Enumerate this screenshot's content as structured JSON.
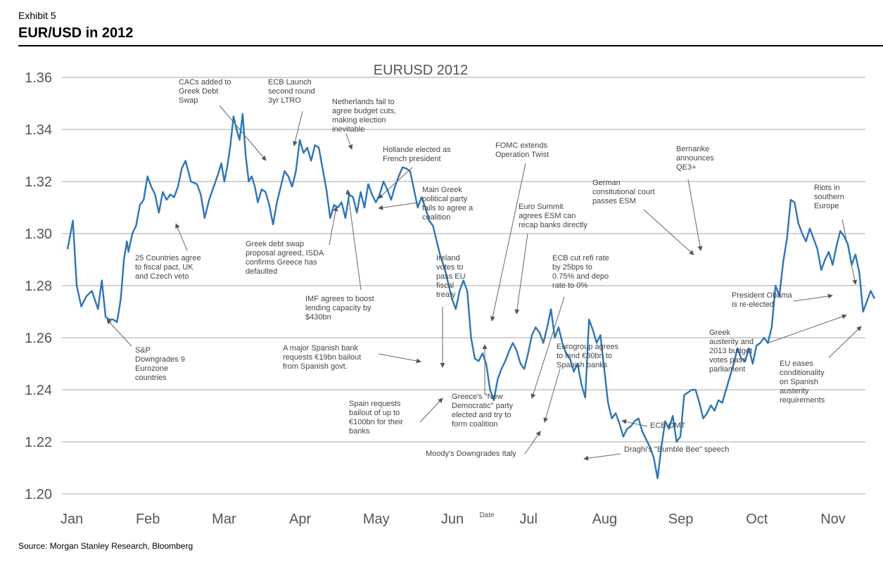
{
  "header": {
    "exhibit": "Exhibit 5",
    "title": "EUR/USD in 2012",
    "source": "Source: Morgan Stanley Research, Bloomberg"
  },
  "chart_data": {
    "type": "line",
    "title": "EURUSD 2012",
    "xlabel": "Date",
    "ylabel": "",
    "ylim": [
      1.2,
      1.36
    ],
    "yticks": [
      "1.20",
      "1.22",
      "1.24",
      "1.26",
      "1.28",
      "1.30",
      "1.32",
      "1.34",
      "1.36"
    ],
    "xticks": [
      "Jan",
      "Feb",
      "Mar",
      "Apr",
      "May",
      "Jun",
      "Jul",
      "Aug",
      "Sep",
      "Oct",
      "Nov"
    ],
    "grid": true,
    "color": "#2e75b6",
    "series": [
      {
        "name": "EURUSD",
        "x": [
          0,
          0.07,
          0.12,
          0.18,
          0.25,
          0.32,
          0.4,
          0.45,
          0.5,
          0.55,
          0.6,
          0.65,
          0.7,
          0.74,
          0.78,
          0.8,
          0.85,
          0.9,
          0.95,
          1.0,
          1.05,
          1.1,
          1.15,
          1.2,
          1.25,
          1.3,
          1.35,
          1.4,
          1.45,
          1.5,
          1.55,
          1.62,
          1.7,
          1.75,
          1.8,
          1.86,
          1.92,
          1.98,
          2.02,
          2.06,
          2.1,
          2.14,
          2.18,
          2.22,
          2.26,
          2.3,
          2.34,
          2.38,
          2.42,
          2.46,
          2.5,
          2.55,
          2.6,
          2.65,
          2.7,
          2.75,
          2.8,
          2.85,
          2.9,
          2.95,
          3.0,
          3.05,
          3.1,
          3.15,
          3.2,
          3.25,
          3.3,
          3.35,
          3.4,
          3.45,
          3.5,
          3.55,
          3.6,
          3.65,
          3.7,
          3.75,
          3.8,
          3.85,
          3.9,
          3.95,
          4.0,
          4.05,
          4.1,
          4.15,
          4.2,
          4.25,
          4.3,
          4.35,
          4.4,
          4.45,
          4.5,
          4.55,
          4.6,
          4.65,
          4.7,
          4.75,
          4.8,
          4.85,
          4.9,
          4.95,
          5.0,
          5.05,
          5.1,
          5.15,
          5.2,
          5.25,
          5.3,
          5.35,
          5.4,
          5.45,
          5.5,
          5.55,
          5.6,
          5.65,
          5.7,
          5.75,
          5.8,
          5.85,
          5.9,
          5.95,
          6.0,
          6.05,
          6.1,
          6.15,
          6.2,
          6.25,
          6.3,
          6.35,
          6.4,
          6.45,
          6.5,
          6.55,
          6.6,
          6.65,
          6.7,
          6.75,
          6.8,
          6.85,
          6.9,
          6.95,
          7.0,
          7.05,
          7.1,
          7.15,
          7.2,
          7.25,
          7.3,
          7.35,
          7.4,
          7.45,
          7.5,
          7.55,
          7.6,
          7.65,
          7.7,
          7.75,
          7.8,
          7.85,
          7.9,
          7.95,
          8.0,
          8.05,
          8.1,
          8.15,
          8.2,
          8.25,
          8.3,
          8.35,
          8.4,
          8.45,
          8.5,
          8.55,
          8.6,
          8.65,
          8.7,
          8.75,
          8.8,
          8.85,
          8.9,
          8.95,
          9.0,
          9.05,
          9.1,
          9.15,
          9.2,
          9.25,
          9.3,
          9.35,
          9.4,
          9.45,
          9.5,
          9.55,
          9.6,
          9.65,
          9.7,
          9.75,
          9.8,
          9.85,
          9.9,
          9.95,
          10.0,
          10.05,
          10.1,
          10.15,
          10.2,
          10.25,
          10.3,
          10.35,
          10.4,
          10.45,
          10.5,
          10.55,
          10.6
        ],
        "values": [
          1.294,
          1.305,
          1.28,
          1.272,
          1.276,
          1.278,
          1.271,
          1.282,
          1.268,
          1.267,
          1.267,
          1.266,
          1.275,
          1.29,
          1.297,
          1.293,
          1.3,
          1.303,
          1.311,
          1.313,
          1.322,
          1.318,
          1.315,
          1.308,
          1.316,
          1.313,
          1.315,
          1.314,
          1.318,
          1.325,
          1.328,
          1.32,
          1.319,
          1.315,
          1.306,
          1.313,
          1.318,
          1.323,
          1.327,
          1.32,
          1.326,
          1.334,
          1.345,
          1.34,
          1.336,
          1.346,
          1.33,
          1.32,
          1.322,
          1.318,
          1.312,
          1.317,
          1.316,
          1.311,
          1.3035,
          1.312,
          1.318,
          1.324,
          1.322,
          1.318,
          1.324,
          1.336,
          1.331,
          1.333,
          1.328,
          1.334,
          1.333,
          1.325,
          1.317,
          1.306,
          1.311,
          1.31,
          1.312,
          1.306,
          1.315,
          1.314,
          1.308,
          1.316,
          1.31,
          1.319,
          1.315,
          1.312,
          1.315,
          1.32,
          1.317,
          1.313,
          1.318,
          1.322,
          1.3255,
          1.325,
          1.324,
          1.317,
          1.31,
          1.314,
          1.31,
          1.305,
          1.303,
          1.297,
          1.291,
          1.287,
          1.281,
          1.275,
          1.271,
          1.278,
          1.282,
          1.278,
          1.26,
          1.252,
          1.251,
          1.254,
          1.25,
          1.24,
          1.236,
          1.244,
          1.248,
          1.251,
          1.255,
          1.258,
          1.255,
          1.25,
          1.248,
          1.254,
          1.261,
          1.264,
          1.262,
          1.258,
          1.264,
          1.271,
          1.26,
          1.264,
          1.258,
          1.254,
          1.252,
          1.247,
          1.25,
          1.242,
          1.237,
          1.267,
          1.263,
          1.258,
          1.261,
          1.248,
          1.235,
          1.229,
          1.231,
          1.227,
          1.222,
          1.225,
          1.226,
          1.228,
          1.229,
          1.224,
          1.221,
          1.218,
          1.214,
          1.206,
          1.218,
          1.228,
          1.225,
          1.23,
          1.22,
          1.222,
          1.238,
          1.239,
          1.24,
          1.24,
          1.235,
          1.229,
          1.231,
          1.234,
          1.232,
          1.236,
          1.235,
          1.24,
          1.245,
          1.25,
          1.256,
          1.252,
          1.251,
          1.256,
          1.25,
          1.257,
          1.258,
          1.26,
          1.258,
          1.264,
          1.28,
          1.276,
          1.289,
          1.298,
          1.313,
          1.312,
          1.304,
          1.3,
          1.297,
          1.302,
          1.298,
          1.294,
          1.286,
          1.29,
          1.293,
          1.288,
          1.295,
          1.301,
          1.299,
          1.296,
          1.288,
          1.292,
          1.285,
          1.27,
          1.274,
          1.278,
          1.275
        ]
      }
    ],
    "annotations": [
      {
        "lines": [
          "S&P",
          "Downgrades 9",
          "Eurozone",
          "countries"
        ]
      },
      {
        "lines": [
          "25 Countries agree",
          "to fiscal pact, UK",
          "and Czech veto"
        ]
      },
      {
        "lines": [
          "CACs added to",
          "Greek Debt",
          "Swap"
        ]
      },
      {
        "lines": [
          "ECB Launch",
          "second round",
          "3yr LTRO"
        ]
      },
      {
        "lines": [
          "Greek debt swap",
          "proposal agreed, ISDA",
          "confirms Greece has",
          "defaulted"
        ]
      },
      {
        "lines": [
          "Netherlands fail to",
          "agree budget cuts,",
          "making election",
          "inevitable"
        ]
      },
      {
        "lines": [
          "Hollande elected as",
          "French president"
        ]
      },
      {
        "lines": [
          "IMF agrees to boost",
          "lending capacity by",
          "$430bn"
        ]
      },
      {
        "lines": [
          "Main Greek",
          "political party",
          "fails to agree a",
          "coalition"
        ]
      },
      {
        "lines": [
          "A major Spanish bank",
          "requests €19bn bailout",
          "from Spanish govt."
        ]
      },
      {
        "lines": [
          "Ireland",
          "votes to",
          "pass EU",
          "fiscal",
          "treaty"
        ]
      },
      {
        "lines": [
          "FOMC extends",
          "Operation Twist"
        ]
      },
      {
        "lines": [
          "Euro Summit",
          "agrees ESM can",
          "recap banks directly"
        ]
      },
      {
        "lines": [
          "Spain requests",
          "bailout of up to",
          "€100bn for their",
          "banks"
        ]
      },
      {
        "lines": [
          "Greece's \"New",
          "Democratic\" party",
          "elected and try to",
          "form coalition"
        ]
      },
      {
        "lines": [
          "ECB cut refi rate",
          "by 25bps to",
          "0.75% and depo",
          "rate to 0%"
        ]
      },
      {
        "lines": [
          "Moody's Downgrades Italy"
        ]
      },
      {
        "lines": [
          "Eurogroup agrees",
          "to lend €30bn to",
          "Spanish banks"
        ]
      },
      {
        "lines": [
          "Draghi's \"Bumble Bee\" speech"
        ]
      },
      {
        "lines": [
          "ECB OMT"
        ]
      },
      {
        "lines": [
          "German",
          "consitutional court",
          "passes ESM"
        ]
      },
      {
        "lines": [
          "Bernanke",
          "announces",
          "QE3+"
        ]
      },
      {
        "lines": [
          "Riots in",
          "southern",
          "Europe"
        ]
      },
      {
        "lines": [
          "President Obama",
          "is re-elected"
        ]
      },
      {
        "lines": [
          "Greek",
          "austerity and",
          "2013 budget",
          "votes pass",
          "parliament"
        ]
      },
      {
        "lines": [
          "EU eases",
          "conditionality",
          "on Spanish",
          "austerity",
          "requirements"
        ]
      }
    ]
  }
}
